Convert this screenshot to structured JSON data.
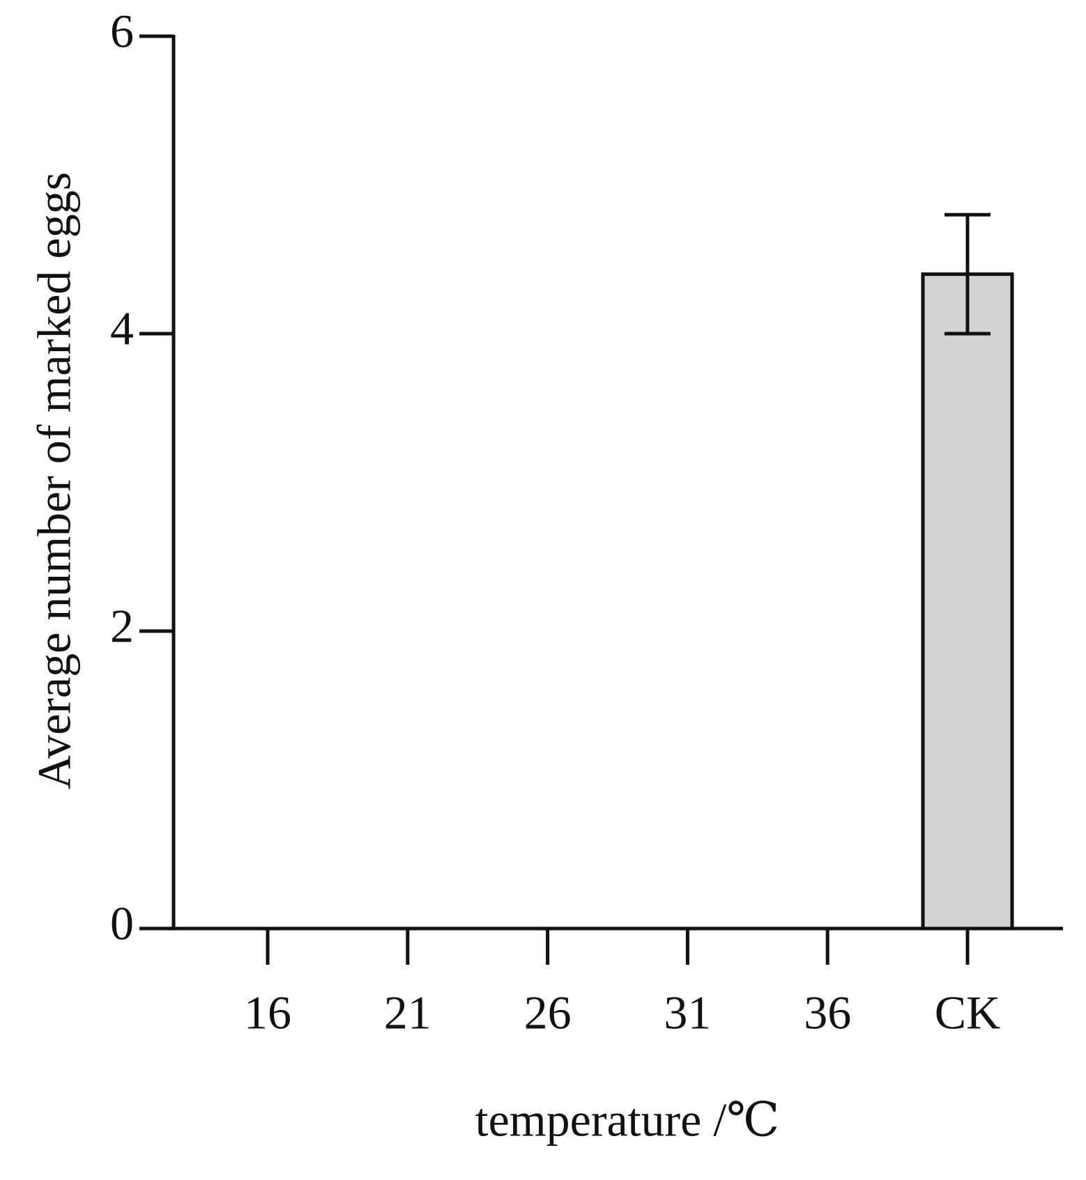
{
  "chart_data": {
    "type": "bar",
    "x_label": "temperature /℃",
    "y_label": "Average number of marked eggs",
    "categories": [
      "16",
      "21",
      "26",
      "31",
      "36",
      "CK"
    ],
    "values": [
      0,
      0,
      0,
      0,
      0,
      4.4
    ],
    "errors": [
      null,
      null,
      null,
      null,
      null,
      0.4
    ],
    "color": "#d3d3d3",
    "ylim": [
      0,
      6
    ],
    "yticks": [
      0,
      2,
      4,
      6
    ],
    "grid": false
  }
}
